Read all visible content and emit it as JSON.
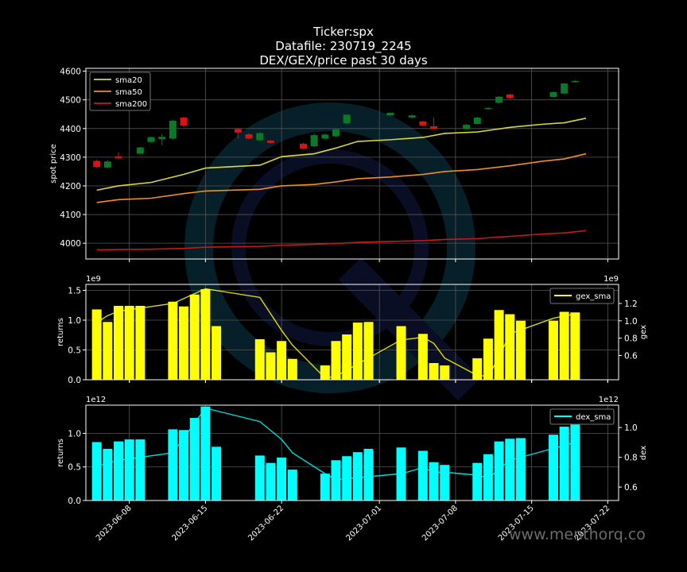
{
  "title": {
    "line1": "Ticker:spx",
    "line2": "Datafile: 230719_2245",
    "line3": "DEX/GEX/price past 30 days"
  },
  "watermark": "www.menthorq.co",
  "colors": {
    "background": "#000000",
    "up": "#0a7a28",
    "down": "#e01010",
    "sma20": "#d8d838",
    "sma50": "#f09020",
    "sma200": "#c81818",
    "gex": "#ffff00",
    "dex": "#00ffff"
  },
  "chart_data": [
    {
      "type": "candlestick",
      "ylabel": "spot price",
      "ylim": [
        3945,
        4610
      ],
      "yticks": [
        4000,
        4100,
        4200,
        4300,
        4400,
        4500,
        4600
      ],
      "xlim": [
        "2023-06-04",
        "2023-07-23"
      ],
      "legend_position": "top-left",
      "grid": true,
      "candles": [
        {
          "date": "2023-06-05",
          "open": 4287,
          "close": 4266,
          "high": 4292,
          "low": 4263
        },
        {
          "date": "2023-06-06",
          "open": 4264,
          "close": 4285,
          "high": 4290,
          "low": 4262
        },
        {
          "date": "2023-06-07",
          "open": 4303,
          "close": 4297,
          "high": 4317,
          "low": 4294
        },
        {
          "date": "2023-06-09",
          "open": 4312,
          "close": 4334,
          "high": 4336,
          "low": 4311
        },
        {
          "date": "2023-06-10",
          "open": 4353,
          "close": 4370,
          "high": 4372,
          "low": 4350
        },
        {
          "date": "2023-06-11",
          "open": 4363,
          "close": 4371,
          "high": 4380,
          "low": 4342
        },
        {
          "date": "2023-06-12",
          "open": 4365,
          "close": 4427,
          "high": 4430,
          "low": 4361
        },
        {
          "date": "2023-06-13",
          "open": 4438,
          "close": 4410,
          "high": 4442,
          "low": 4405
        },
        {
          "date": "2023-06-18",
          "open": 4398,
          "close": 4386,
          "high": 4402,
          "low": 4366
        },
        {
          "date": "2023-06-19",
          "open": 4380,
          "close": 4365,
          "high": 4384,
          "low": 4362
        },
        {
          "date": "2023-06-20",
          "open": 4359,
          "close": 4384,
          "high": 4386,
          "low": 4356
        },
        {
          "date": "2023-06-21",
          "open": 4358,
          "close": 4350,
          "high": 4360,
          "low": 4347
        },
        {
          "date": "2023-06-24",
          "open": 4347,
          "close": 4330,
          "high": 4350,
          "low": 4328
        },
        {
          "date": "2023-06-25",
          "open": 4338,
          "close": 4377,
          "high": 4383,
          "low": 4335
        },
        {
          "date": "2023-06-26",
          "open": 4365,
          "close": 4379,
          "high": 4382,
          "low": 4362
        },
        {
          "date": "2023-06-27",
          "open": 4373,
          "close": 4397,
          "high": 4400,
          "low": 4370
        },
        {
          "date": "2023-06-28",
          "open": 4418,
          "close": 4448,
          "high": 4450,
          "low": 4416
        },
        {
          "date": "2023-07-02",
          "open": 4446,
          "close": 4455,
          "high": 4456,
          "low": 4444
        },
        {
          "date": "2023-07-04",
          "open": 4438,
          "close": 4446,
          "high": 4448,
          "low": 4436
        },
        {
          "date": "2023-07-05",
          "open": 4425,
          "close": 4410,
          "high": 4427,
          "low": 4408
        },
        {
          "date": "2023-07-06",
          "open": 4408,
          "close": 4398,
          "high": 4440,
          "low": 4396
        },
        {
          "date": "2023-07-09",
          "open": 4398,
          "close": 4413,
          "high": 4416,
          "low": 4396
        },
        {
          "date": "2023-07-10",
          "open": 4416,
          "close": 4438,
          "high": 4441,
          "low": 4414
        },
        {
          "date": "2023-07-11",
          "open": 4468,
          "close": 4472,
          "high": 4474,
          "low": 4466
        },
        {
          "date": "2023-07-12",
          "open": 4490,
          "close": 4511,
          "high": 4513,
          "low": 4487
        },
        {
          "date": "2023-07-13",
          "open": 4519,
          "close": 4506,
          "high": 4521,
          "low": 4503
        },
        {
          "date": "2023-07-17",
          "open": 4510,
          "close": 4527,
          "high": 4529,
          "low": 4508
        },
        {
          "date": "2023-07-18",
          "open": 4522,
          "close": 4557,
          "high": 4559,
          "low": 4520
        },
        {
          "date": "2023-07-19",
          "open": 4563,
          "close": 4566,
          "high": 4570,
          "low": 4561
        }
      ],
      "series": [
        {
          "name": "sma20",
          "x": [
            "2023-06-05",
            "2023-06-07",
            "2023-06-10",
            "2023-06-13",
            "2023-06-15",
            "2023-06-20",
            "2023-06-22",
            "2023-06-25",
            "2023-06-27",
            "2023-06-29",
            "2023-07-02",
            "2023-07-05",
            "2023-07-07",
            "2023-07-10",
            "2023-07-13",
            "2023-07-16",
            "2023-07-18",
            "2023-07-20"
          ],
          "values": [
            4185,
            4200,
            4212,
            4240,
            4262,
            4272,
            4302,
            4312,
            4332,
            4355,
            4361,
            4369,
            4383,
            4388,
            4404,
            4415,
            4420,
            4436
          ]
        },
        {
          "name": "sma50",
          "x": [
            "2023-06-05",
            "2023-06-07",
            "2023-06-10",
            "2023-06-13",
            "2023-06-15",
            "2023-06-20",
            "2023-06-22",
            "2023-06-25",
            "2023-06-27",
            "2023-06-29",
            "2023-07-02",
            "2023-07-05",
            "2023-07-07",
            "2023-07-10",
            "2023-07-13",
            "2023-07-16",
            "2023-07-18",
            "2023-07-20"
          ],
          "values": [
            4142,
            4152,
            4157,
            4173,
            4182,
            4188,
            4200,
            4205,
            4214,
            4225,
            4231,
            4240,
            4250,
            4257,
            4270,
            4286,
            4294,
            4312
          ]
        },
        {
          "name": "sma200",
          "x": [
            "2023-06-05",
            "2023-06-07",
            "2023-06-10",
            "2023-06-13",
            "2023-06-15",
            "2023-06-20",
            "2023-06-22",
            "2023-06-25",
            "2023-06-27",
            "2023-06-29",
            "2023-07-02",
            "2023-07-05",
            "2023-07-07",
            "2023-07-10",
            "2023-07-13",
            "2023-07-16",
            "2023-07-18",
            "2023-07-20"
          ],
          "values": [
            3977,
            3978,
            3979,
            3982,
            3986,
            3989,
            3993,
            3996,
            3999,
            4003,
            4006,
            4009,
            4013,
            4016,
            4024,
            4032,
            4036,
            4044
          ]
        }
      ]
    },
    {
      "type": "bar",
      "ylabel": "returns",
      "y2label": "gex",
      "yscale_label": "1e9",
      "y2scale_label": "1e9",
      "ylim": [
        0,
        1.6
      ],
      "yticks": [
        0.0,
        0.5,
        1.0,
        1.5
      ],
      "y2lim": [
        0.32,
        1.42
      ],
      "y2ticks": [
        0.6,
        0.8,
        1.0,
        1.2
      ],
      "legend_position": "top-right",
      "grid": true,
      "x": [
        "2023-06-05",
        "2023-06-06",
        "2023-06-07",
        "2023-06-08",
        "2023-06-09",
        "2023-06-12",
        "2023-06-13",
        "2023-06-14",
        "2023-06-15",
        "2023-06-16",
        "2023-06-20",
        "2023-06-21",
        "2023-06-22",
        "2023-06-23",
        "2023-06-26",
        "2023-06-27",
        "2023-06-28",
        "2023-06-29",
        "2023-06-30",
        "2023-07-03",
        "2023-07-05",
        "2023-07-06",
        "2023-07-07",
        "2023-07-10",
        "2023-07-11",
        "2023-07-12",
        "2023-07-13",
        "2023-07-14",
        "2023-07-17",
        "2023-07-18",
        "2023-07-19"
      ],
      "values": [
        1.18,
        0.97,
        1.24,
        1.24,
        1.24,
        1.31,
        1.23,
        1.43,
        1.52,
        0.9,
        0.68,
        0.46,
        0.65,
        0.35,
        0.24,
        0.65,
        0.76,
        0.96,
        0.97,
        0.9,
        0.77,
        0.28,
        0.24,
        0.36,
        0.69,
        1.17,
        1.1,
        0.99,
        0.99,
        1.14,
        1.13
      ],
      "series": [
        {
          "name": "gex_sma",
          "x": [
            "2023-06-05",
            "2023-06-06",
            "2023-06-07",
            "2023-06-12",
            "2023-06-15",
            "2023-06-20",
            "2023-06-22",
            "2023-06-23",
            "2023-06-26",
            "2023-06-27",
            "2023-07-03",
            "2023-07-05",
            "2023-07-06",
            "2023-07-07",
            "2023-07-10",
            "2023-07-11",
            "2023-07-12",
            "2023-07-13",
            "2023-07-17",
            "2023-07-19"
          ],
          "values": [
            0.98,
            1.06,
            1.11,
            1.2,
            1.37,
            1.27,
            0.89,
            0.72,
            0.34,
            0.36,
            0.78,
            0.81,
            0.74,
            0.57,
            0.37,
            0.36,
            0.58,
            0.85,
            1.03,
            1.08
          ]
        }
      ]
    },
    {
      "type": "bar",
      "ylabel": "returns",
      "y2label": "dex",
      "yscale_label": "1e12",
      "y2scale_label": "1e12",
      "ylim": [
        0,
        1.42
      ],
      "yticks": [
        0.0,
        0.5,
        1.0
      ],
      "y2lim": [
        0.51,
        1.15
      ],
      "y2ticks": [
        0.6,
        0.8,
        1.0
      ],
      "xticks": [
        "2023-06-08",
        "2023-06-15",
        "2023-06-22",
        "2023-07-01",
        "2023-07-08",
        "2023-07-15",
        "2023-07-22"
      ],
      "legend_position": "top-right",
      "grid": true,
      "x": [
        "2023-06-05",
        "2023-06-06",
        "2023-06-07",
        "2023-06-08",
        "2023-06-09",
        "2023-06-12",
        "2023-06-13",
        "2023-06-14",
        "2023-06-15",
        "2023-06-16",
        "2023-06-20",
        "2023-06-21",
        "2023-06-22",
        "2023-06-23",
        "2023-06-26",
        "2023-06-27",
        "2023-06-28",
        "2023-06-29",
        "2023-06-30",
        "2023-07-03",
        "2023-07-05",
        "2023-07-06",
        "2023-07-07",
        "2023-07-10",
        "2023-07-11",
        "2023-07-12",
        "2023-07-13",
        "2023-07-14",
        "2023-07-17",
        "2023-07-18",
        "2023-07-19"
      ],
      "values": [
        0.87,
        0.77,
        0.88,
        0.91,
        0.91,
        1.06,
        1.05,
        1.23,
        1.4,
        0.8,
        0.67,
        0.56,
        0.64,
        0.46,
        0.4,
        0.6,
        0.66,
        0.72,
        0.77,
        0.79,
        0.74,
        0.57,
        0.53,
        0.56,
        0.69,
        0.88,
        0.92,
        0.93,
        0.98,
        1.1,
        1.13
      ],
      "series": [
        {
          "name": "dex_sma",
          "x": [
            "2023-06-05",
            "2023-06-06",
            "2023-06-07",
            "2023-06-12",
            "2023-06-15",
            "2023-06-20",
            "2023-06-22",
            "2023-06-23",
            "2023-06-26",
            "2023-06-27",
            "2023-07-03",
            "2023-07-05",
            "2023-07-06",
            "2023-07-07",
            "2023-07-10",
            "2023-07-11",
            "2023-07-12",
            "2023-07-13",
            "2023-07-17",
            "2023-07-19"
          ],
          "values": [
            0.74,
            0.76,
            0.78,
            0.83,
            1.13,
            1.04,
            0.92,
            0.83,
            0.69,
            0.65,
            0.69,
            0.73,
            0.7,
            0.7,
            0.68,
            0.66,
            0.72,
            0.78,
            0.86,
            0.9
          ]
        }
      ]
    }
  ]
}
